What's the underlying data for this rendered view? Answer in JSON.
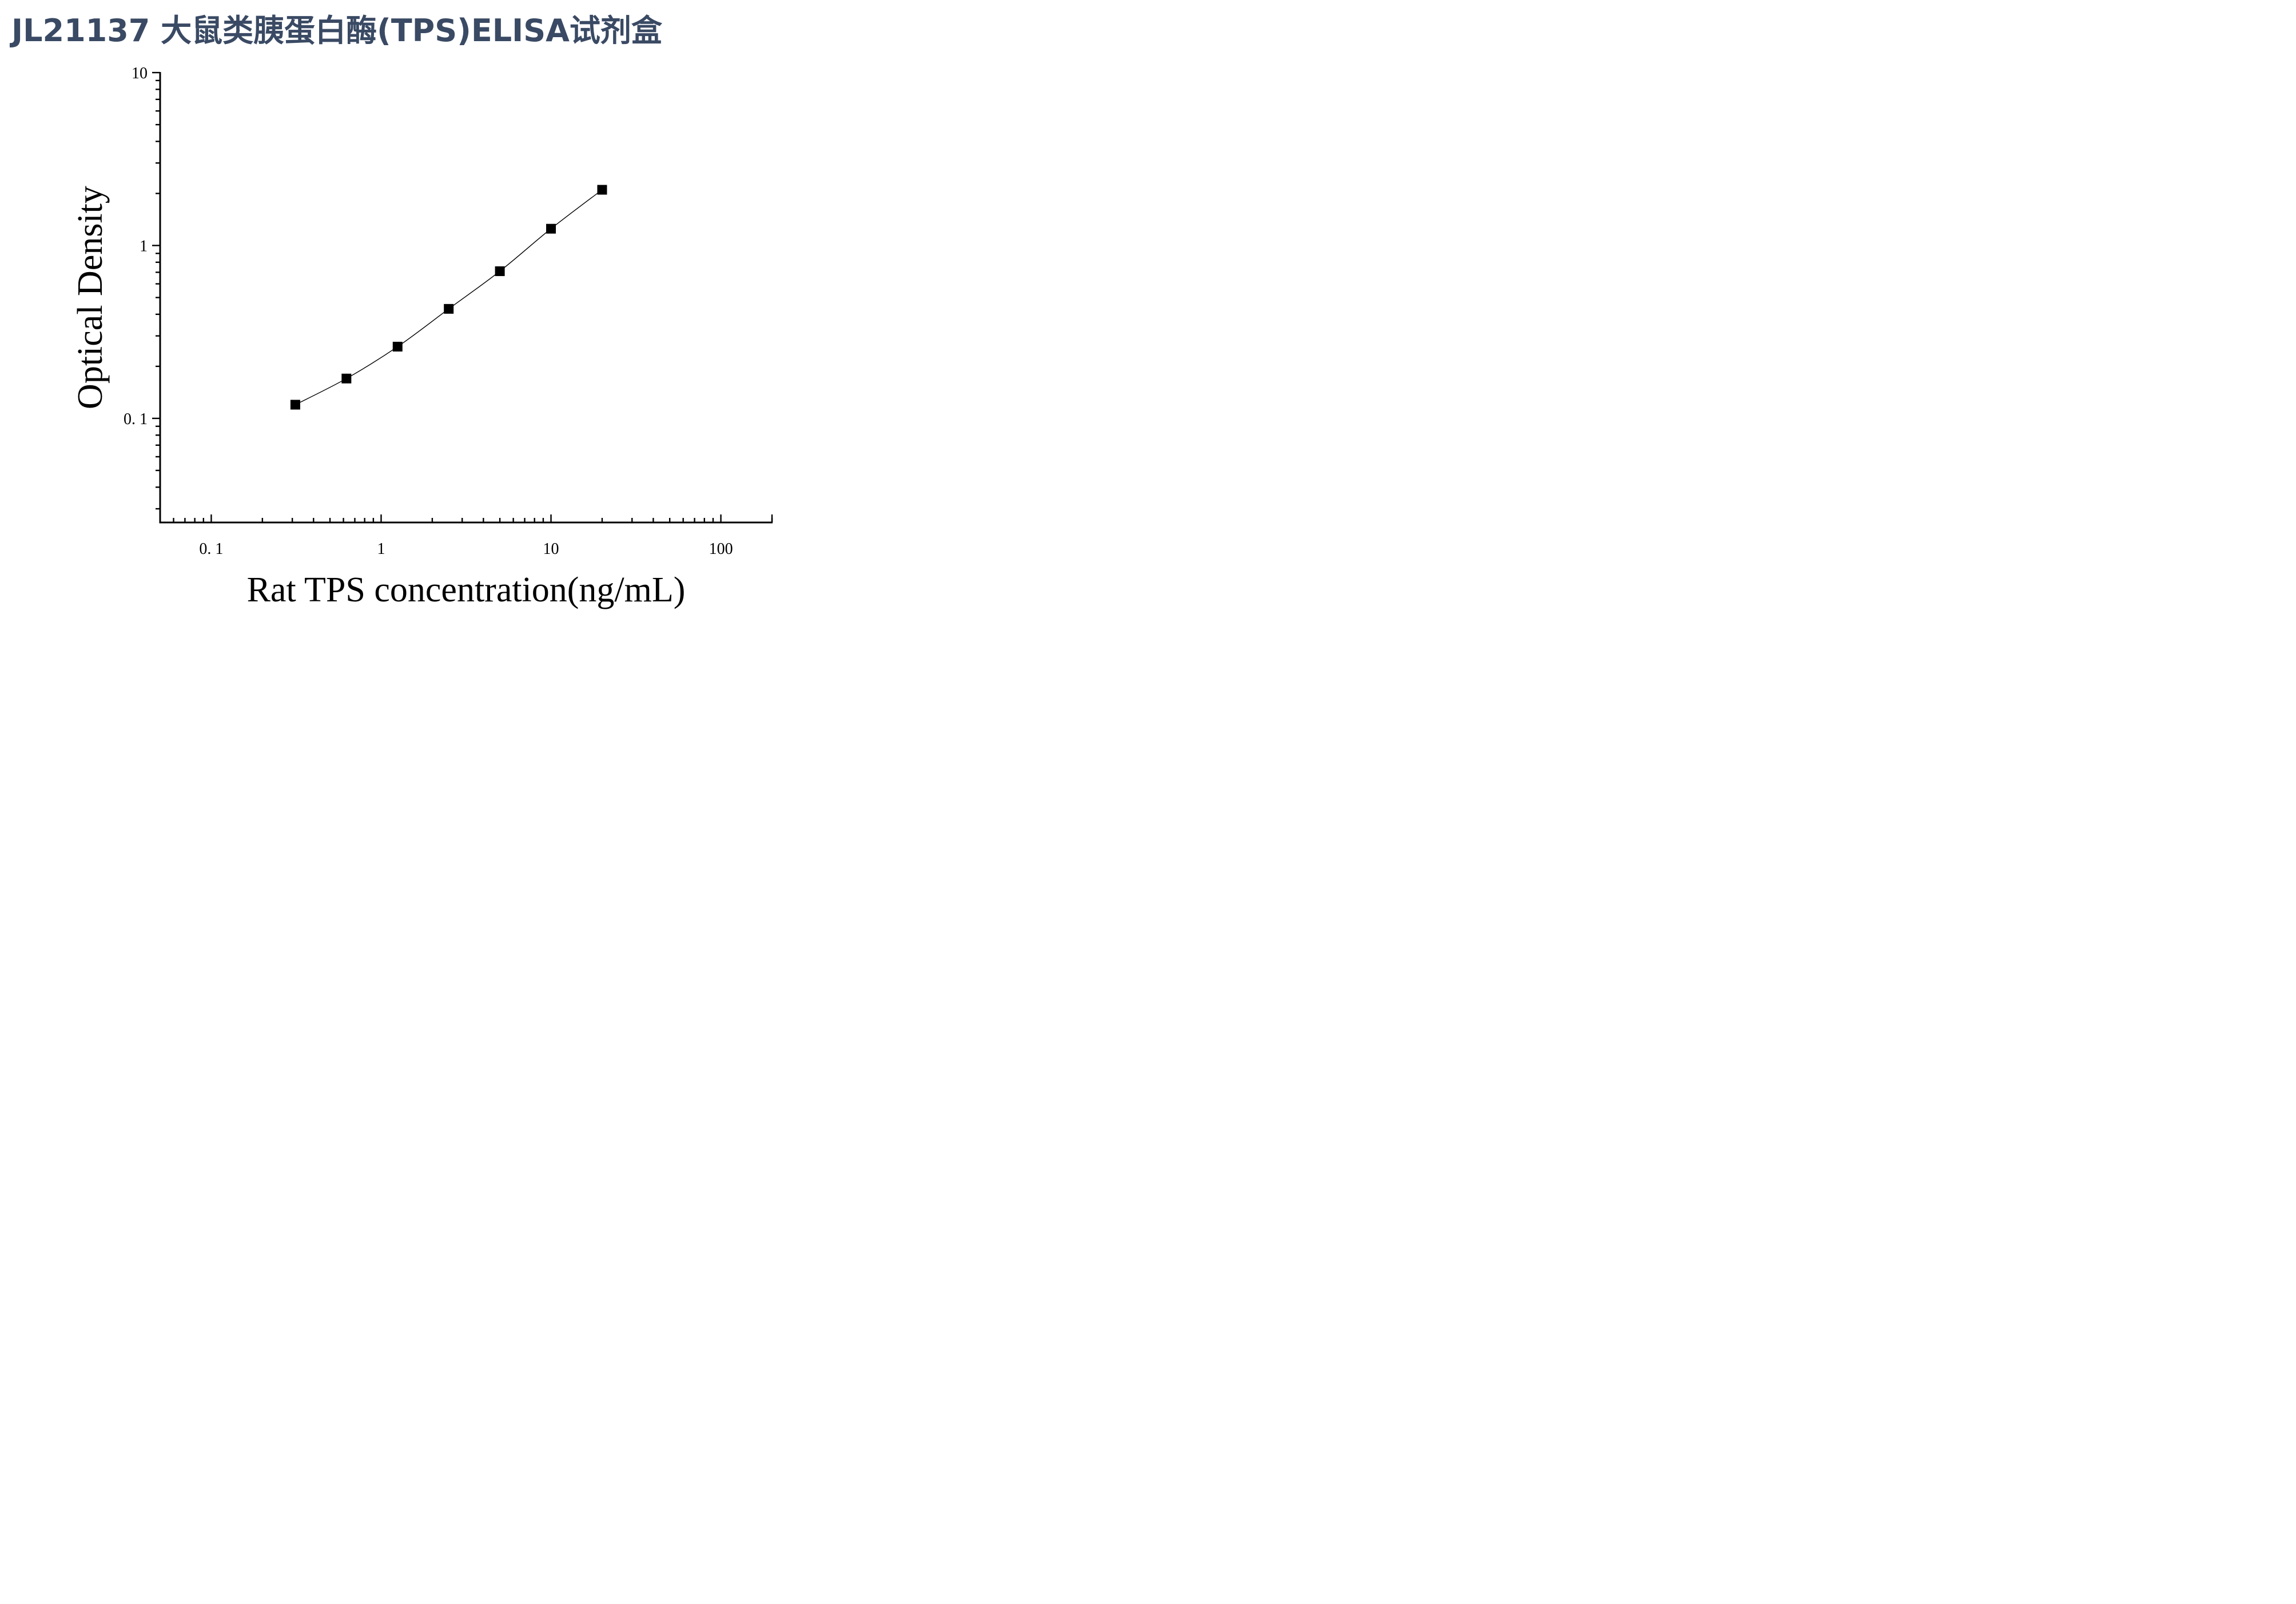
{
  "page": {
    "title": "JL21137 大鼠类胰蛋白酶(TPS)ELISA试剂盒"
  },
  "chart_data": {
    "type": "scatter",
    "title": "JL21137 大鼠类胰蛋白酶(TPS)ELISA试剂盒",
    "xlabel": "Rat TPS concentration(ng/mL)",
    "ylabel": "Optical Density",
    "x_scale": "log",
    "y_scale": "log",
    "xlim": [
      0.05,
      200
    ],
    "ylim": [
      0.025,
      10
    ],
    "x_ticks": [
      {
        "value": 0.1,
        "label": "0. 1"
      },
      {
        "value": 1,
        "label": "1"
      },
      {
        "value": 10,
        "label": "10"
      },
      {
        "value": 100,
        "label": "100"
      }
    ],
    "y_ticks": [
      {
        "value": 0.1,
        "label": "0. 1"
      },
      {
        "value": 1,
        "label": "1"
      },
      {
        "value": 10,
        "label": "10"
      }
    ],
    "grid": false,
    "legend": "none",
    "fit_line": true,
    "marker": "square",
    "color": "#000000",
    "series": [
      {
        "x": [
          0.3125,
          0.625,
          1.25,
          2.5,
          5,
          10,
          20
        ],
        "y": [
          0.12,
          0.17,
          0.26,
          0.43,
          0.71,
          1.25,
          2.1
        ]
      }
    ]
  }
}
